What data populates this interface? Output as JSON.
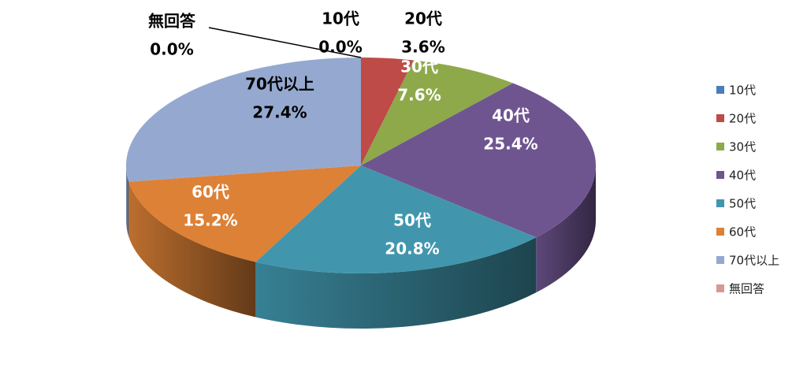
{
  "chart_data": {
    "type": "pie3d",
    "categories": [
      "10代",
      "20代",
      "30代",
      "40代",
      "50代",
      "60代",
      "70代以上",
      "無回答"
    ],
    "values": [
      0,
      3.6,
      7.6,
      25.4,
      20.8,
      15.2,
      27.4,
      0
    ],
    "value_labels": [
      "0.0%",
      "3.6%",
      "7.6%",
      "25.4%",
      "20.8%",
      "15.2%",
      "27.4%",
      "0.0%"
    ],
    "colors": [
      "#4a7ebb",
      "#be4b48",
      "#8ea94a",
      "#6f5590",
      "#4196ae",
      "#dd8136",
      "#95a9d0",
      "#d99694"
    ],
    "legend": "right"
  }
}
